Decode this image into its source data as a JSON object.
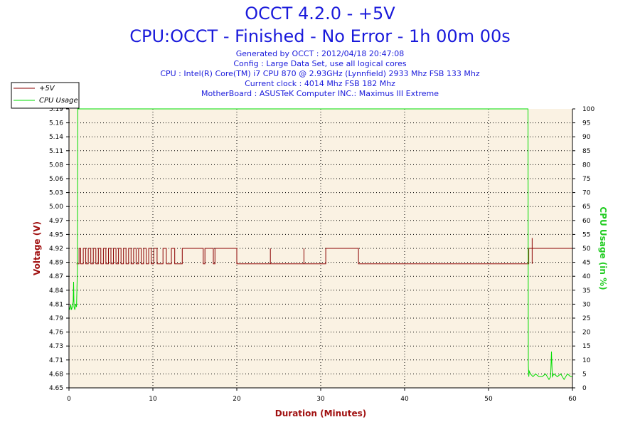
{
  "header": {
    "title_line1": "OCCT 4.2.0 - +5V",
    "title_line2": "CPU:OCCT - Finished - No Error - 1h 00m 00s",
    "info": [
      "Generated by OCCT : 2012/04/18 20:47:08",
      "Config : Large Data Set, use all logical cores",
      "CPU : Intel(R) Core(TM) i7 CPU 870 @ 2.93GHz (Lynnfield) 2933 Mhz FSB 133 Mhz",
      "Current clock : 4014 Mhz FSB 182 Mhz",
      "MotherBoard : ASUSTeK Computer INC.: Maximus III Extreme"
    ]
  },
  "colors": {
    "voltage": "#8b0000",
    "cpu": "#00dd00",
    "plot_bg": "#faf2e3",
    "grid": "#000000",
    "cpu_axis_label": "#22cc22",
    "voltage_axis_label": "#a01010",
    "x_axis_label": "#a01010"
  },
  "chart_data": {
    "type": "line",
    "xlabel": "Duration (Minutes)",
    "ylabel": "Voltage (V)",
    "y2label": "CPU Usage (in %)",
    "xlim": [
      0,
      60
    ],
    "ylim": [
      4.65,
      5.19
    ],
    "y2lim": [
      0,
      100
    ],
    "x_ticks": [
      "0",
      "10",
      "20",
      "30",
      "40",
      "50",
      "60"
    ],
    "y_ticks": [
      "4.65",
      "4.68",
      "4.71",
      "4.73",
      "4.76",
      "4.79",
      "4.81",
      "4.84",
      "4.87",
      "4.89",
      "4.92",
      "4.95",
      "4.97",
      "5.00",
      "5.03",
      "5.06",
      "5.08",
      "5.11",
      "5.14",
      "5.16",
      "5.19"
    ],
    "y2_ticks": [
      "0",
      "5",
      "10",
      "15",
      "20",
      "25",
      "30",
      "35",
      "40",
      "45",
      "50",
      "55",
      "60",
      "65",
      "70",
      "75",
      "80",
      "85",
      "90",
      "95",
      "100"
    ],
    "grid": true,
    "legend_position": "top-left",
    "series": [
      {
        "name": "+5V",
        "axis": "left",
        "x": [
          0.9,
          1.2,
          1.2,
          1.4,
          1.4,
          1.7,
          1.7,
          2.0,
          2.0,
          2.3,
          2.3,
          2.6,
          2.6,
          2.9,
          2.9,
          3.2,
          3.2,
          3.5,
          3.5,
          3.8,
          3.8,
          4.1,
          4.1,
          4.4,
          4.4,
          4.7,
          4.7,
          5.0,
          5.0,
          5.3,
          5.3,
          5.6,
          5.6,
          5.9,
          5.9,
          6.2,
          6.2,
          6.5,
          6.5,
          6.8,
          6.8,
          7.1,
          7.1,
          7.4,
          7.4,
          7.7,
          7.7,
          8.0,
          8.0,
          8.3,
          8.3,
          8.6,
          8.6,
          8.9,
          8.9,
          9.2,
          9.2,
          9.5,
          9.5,
          9.8,
          9.8,
          10.1,
          10.1,
          10.5,
          10.5,
          11.2,
          11.2,
          11.6,
          11.6,
          12.2,
          12.2,
          12.6,
          12.6,
          13.5,
          13.5,
          16.0,
          16.0,
          16.2,
          16.2,
          17.2,
          17.2,
          17.4,
          17.4,
          20.0,
          20.0,
          20.1,
          20.1,
          30.6,
          30.6,
          34.5,
          34.5,
          54.8,
          54.8,
          55.3,
          55.3,
          60.0
        ],
        "y": [
          4.89,
          4.89,
          4.92,
          4.92,
          4.89,
          4.89,
          4.92,
          4.92,
          4.89,
          4.89,
          4.92,
          4.92,
          4.89,
          4.89,
          4.92,
          4.92,
          4.89,
          4.89,
          4.92,
          4.92,
          4.89,
          4.89,
          4.92,
          4.92,
          4.89,
          4.89,
          4.92,
          4.92,
          4.89,
          4.89,
          4.92,
          4.92,
          4.89,
          4.89,
          4.92,
          4.92,
          4.89,
          4.89,
          4.92,
          4.92,
          4.89,
          4.89,
          4.92,
          4.92,
          4.89,
          4.89,
          4.92,
          4.92,
          4.89,
          4.89,
          4.92,
          4.92,
          4.89,
          4.89,
          4.92,
          4.92,
          4.89,
          4.89,
          4.92,
          4.92,
          4.89,
          4.89,
          4.92,
          4.92,
          4.89,
          4.89,
          4.92,
          4.92,
          4.89,
          4.89,
          4.92,
          4.92,
          4.89,
          4.89,
          4.92,
          4.92,
          4.89,
          4.89,
          4.92,
          4.92,
          4.89,
          4.89,
          4.92,
          4.92,
          4.89,
          4.89,
          4.89,
          4.89,
          4.92,
          4.92,
          4.89,
          4.89,
          4.92,
          4.92,
          4.92,
          4.92
        ],
        "spikes": [
          {
            "x": 24.0,
            "y": 4.92
          },
          {
            "x": 28.0,
            "y": 4.92
          },
          {
            "x": 55.2,
            "y": 4.94
          }
        ]
      },
      {
        "name": "CPU Usage",
        "axis": "right",
        "x": [
          0.0,
          0.1,
          0.2,
          0.3,
          0.4,
          0.5,
          0.55,
          0.6,
          0.7,
          0.8,
          0.9,
          1.0,
          1.05,
          1.1,
          1.2,
          54.6,
          54.7,
          54.75,
          54.8,
          54.85,
          55.0,
          55.3,
          55.6,
          56.0,
          56.4,
          56.8,
          57.2,
          57.4,
          57.5,
          57.6,
          57.8,
          58.2,
          58.6,
          59.0,
          59.4,
          59.8,
          60.0
        ],
        "y": [
          29,
          28,
          30,
          28,
          29,
          31,
          38,
          29,
          28,
          30,
          29,
          42,
          100,
          100,
          100,
          100,
          100,
          8,
          4,
          6,
          5,
          4,
          5,
          4,
          4,
          5,
          3,
          4,
          13,
          4,
          5,
          4,
          5,
          3,
          5,
          4,
          4
        ]
      }
    ]
  }
}
